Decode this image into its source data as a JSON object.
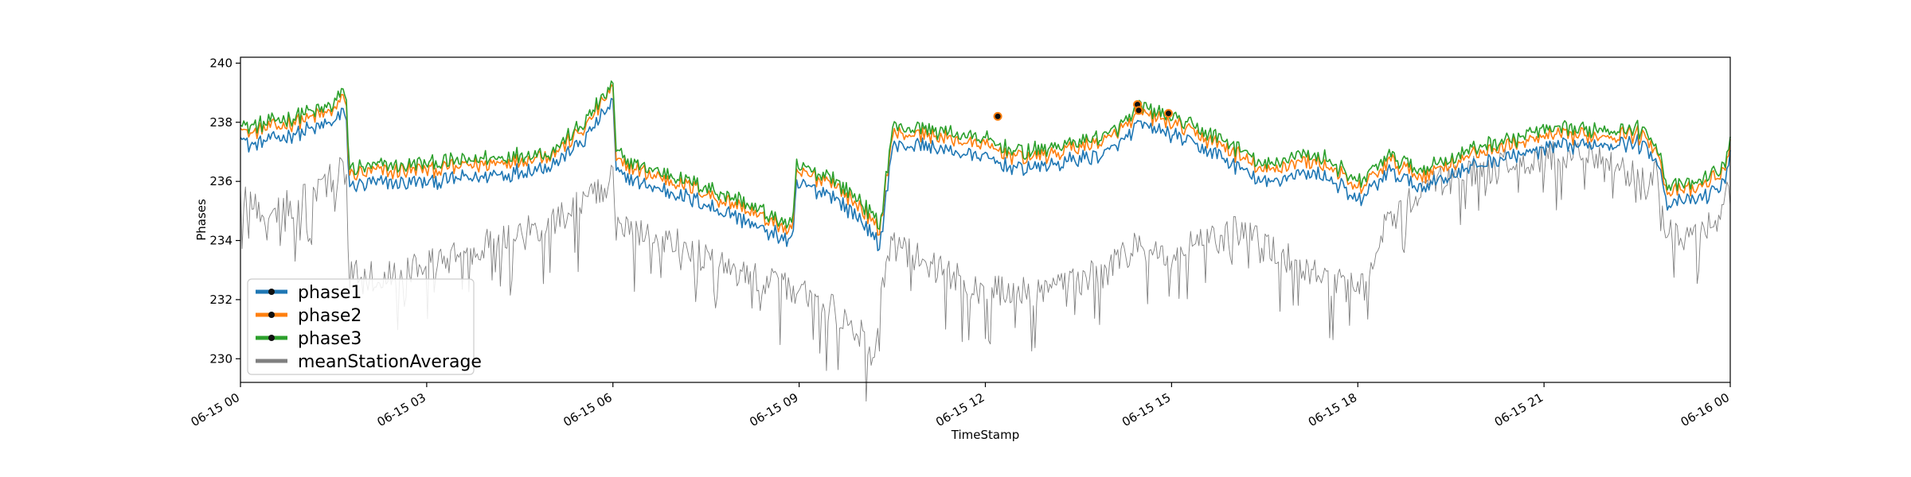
{
  "chart_data": {
    "type": "line",
    "title": "",
    "xlabel": "TimeStamp",
    "ylabel": "Phases",
    "ylim": [
      229.2,
      240.2
    ],
    "xlim": [
      "06-15 00:00",
      "06-16 00:00"
    ],
    "x_unit": "hours since 06-15 00",
    "y_ticks": [
      230,
      232,
      234,
      236,
      238,
      240
    ],
    "x_ticks": [
      {
        "label": "06-15 00",
        "x": 0
      },
      {
        "label": "06-15 03",
        "x": 3
      },
      {
        "label": "06-15 06",
        "x": 6
      },
      {
        "label": "06-15 09",
        "x": 9
      },
      {
        "label": "06-15 12",
        "x": 12
      },
      {
        "label": "06-15 15",
        "x": 15
      },
      {
        "label": "06-15 18",
        "x": 18
      },
      {
        "label": "06-15 21",
        "x": 21
      },
      {
        "label": "06-16 00",
        "x": 24
      }
    ],
    "grid": false,
    "legend_position": "lower-left",
    "series": [
      {
        "name": "phase1",
        "color": "#1f77b4",
        "noise": 0.35,
        "x": [
          0,
          0.1,
          0.5,
          1.0,
          1.5,
          1.7,
          1.75,
          2.0,
          3.0,
          4.0,
          5.0,
          5.5,
          5.9,
          6.0,
          6.05,
          6.5,
          7.0,
          8.0,
          8.9,
          8.95,
          9.5,
          10.0,
          10.3,
          10.5,
          11.0,
          11.5,
          12.0,
          12.5,
          13.0,
          14.0,
          14.5,
          15.0,
          16.0,
          16.5,
          17.0,
          17.5,
          18.0,
          18.5,
          19.0,
          20.0,
          21.0,
          22.0,
          22.5,
          22.8,
          23.0,
          23.5,
          23.9,
          24.0
        ],
        "y": [
          237.7,
          237.2,
          237.4,
          237.7,
          238.0,
          238.4,
          235.8,
          235.9,
          236.0,
          236.2,
          236.5,
          237.3,
          238.4,
          238.7,
          236.3,
          235.9,
          235.6,
          234.8,
          233.9,
          235.9,
          235.6,
          234.7,
          233.8,
          237.2,
          237.2,
          237.0,
          236.8,
          236.4,
          236.5,
          237.0,
          237.9,
          237.6,
          236.6,
          235.9,
          236.3,
          236.2,
          235.3,
          236.3,
          235.8,
          236.6,
          237.1,
          237.3,
          237.3,
          236.9,
          235.2,
          235.4,
          235.9,
          237.1
        ]
      },
      {
        "name": "phase2",
        "color": "#ff7f0e",
        "noise": 0.35,
        "x": [
          0,
          0.1,
          0.5,
          1.0,
          1.5,
          1.7,
          1.75,
          2.0,
          3.0,
          4.0,
          5.0,
          5.5,
          5.9,
          6.0,
          6.05,
          6.5,
          7.0,
          8.0,
          8.9,
          8.95,
          9.5,
          10.0,
          10.3,
          10.5,
          11.0,
          11.5,
          12.0,
          12.5,
          13.0,
          14.0,
          14.5,
          15.0,
          16.0,
          16.5,
          17.0,
          17.5,
          18.0,
          18.5,
          19.0,
          20.0,
          21.0,
          22.0,
          22.5,
          22.8,
          23.0,
          23.5,
          23.9,
          24.0
        ],
        "y": [
          238.0,
          237.6,
          237.8,
          238.1,
          238.4,
          238.9,
          236.2,
          236.3,
          236.4,
          236.6,
          236.9,
          237.7,
          238.9,
          239.1,
          236.7,
          236.3,
          236.0,
          235.2,
          234.3,
          236.3,
          236.0,
          235.1,
          234.3,
          237.6,
          237.6,
          237.4,
          237.2,
          236.8,
          236.9,
          237.4,
          238.3,
          238.0,
          237.0,
          236.3,
          236.7,
          236.6,
          235.7,
          236.7,
          236.2,
          237.0,
          237.5,
          237.6,
          237.6,
          237.2,
          235.6,
          235.8,
          236.3,
          237.4
        ]
      },
      {
        "name": "phase3",
        "color": "#2ca02c",
        "noise": 0.35,
        "x": [
          0,
          0.1,
          0.5,
          1.0,
          1.5,
          1.7,
          1.75,
          2.0,
          3.0,
          4.0,
          5.0,
          5.5,
          5.9,
          6.0,
          6.05,
          6.5,
          7.0,
          8.0,
          8.9,
          8.95,
          9.5,
          10.0,
          10.3,
          10.5,
          11.0,
          11.5,
          12.0,
          12.5,
          13.0,
          14.0,
          14.5,
          15.0,
          16.0,
          16.5,
          17.0,
          17.5,
          18.0,
          18.5,
          19.0,
          20.0,
          21.0,
          22.0,
          22.5,
          22.8,
          23.0,
          23.5,
          23.9,
          24.0
        ],
        "y": [
          238.1,
          237.8,
          238.0,
          238.3,
          238.6,
          239.1,
          236.4,
          236.5,
          236.6,
          236.8,
          237.0,
          237.9,
          239.0,
          239.4,
          236.9,
          236.5,
          236.2,
          235.4,
          234.5,
          236.5,
          236.2,
          235.3,
          234.5,
          237.8,
          237.8,
          237.6,
          237.4,
          237.0,
          237.1,
          237.6,
          238.5,
          238.2,
          237.2,
          236.5,
          236.9,
          236.8,
          235.9,
          236.9,
          236.4,
          237.2,
          237.7,
          237.8,
          237.8,
          237.4,
          235.8,
          236.0,
          236.5,
          237.6
        ]
      },
      {
        "name": "meanStationAverage",
        "color": "#808080",
        "noise": 1.3,
        "x": [
          0,
          0.5,
          1.0,
          1.7,
          1.75,
          2.0,
          3.0,
          4.0,
          5.0,
          5.9,
          6.0,
          6.05,
          7.0,
          8.0,
          8.9,
          9.5,
          10.0,
          10.2,
          10.3,
          10.5,
          11.0,
          12.0,
          13.0,
          14.0,
          14.5,
          15.0,
          16.0,
          17.0,
          17.5,
          18.0,
          18.5,
          19.0,
          20.0,
          21.0,
          22.0,
          22.5,
          22.8,
          23.0,
          23.5,
          23.9,
          24.0
        ],
        "y": [
          235.5,
          235.0,
          235.5,
          236.5,
          233.0,
          232.8,
          233.2,
          234.0,
          234.7,
          235.8,
          236.3,
          234.6,
          234.0,
          233.0,
          232.5,
          231.8,
          230.9,
          230.0,
          231.8,
          234.1,
          233.3,
          232.4,
          232.4,
          233.1,
          234.0,
          233.6,
          234.4,
          233.4,
          232.8,
          232.4,
          234.8,
          235.8,
          236.5,
          236.9,
          237.0,
          236.2,
          236.3,
          234.3,
          234.2,
          235.2,
          236.5
        ]
      }
    ],
    "markers": [
      {
        "x": 12.2,
        "y": 238.2
      },
      {
        "x": 14.45,
        "y": 238.6
      },
      {
        "x": 14.47,
        "y": 238.4
      },
      {
        "x": 14.95,
        "y": 238.3
      }
    ]
  }
}
